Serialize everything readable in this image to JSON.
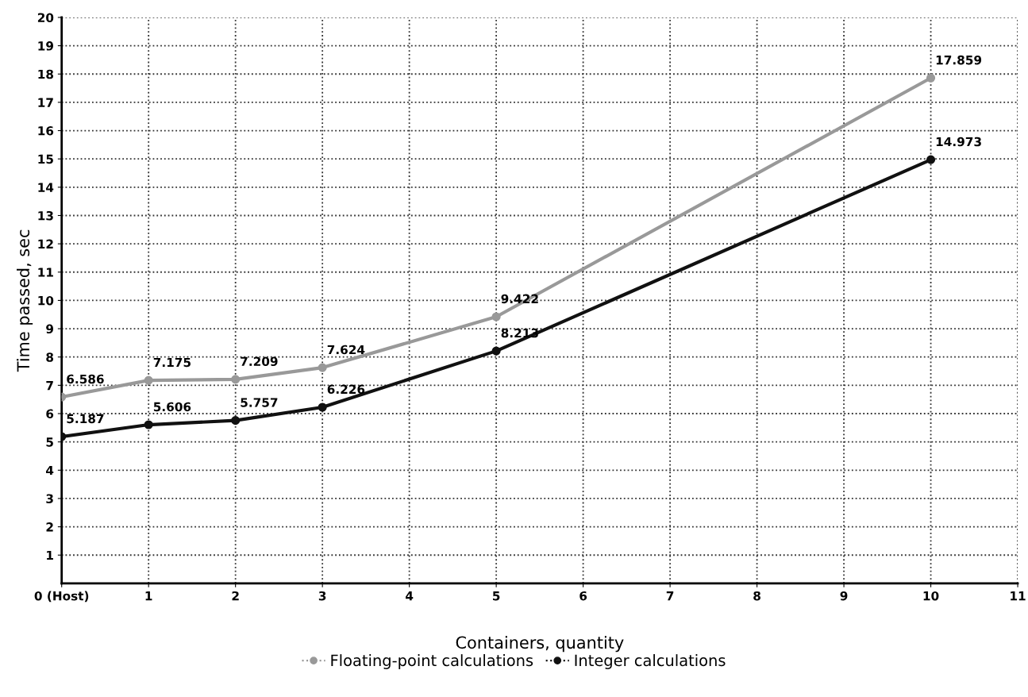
{
  "chart_data": {
    "type": "line",
    "xlabel": "Containers, quantity",
    "ylabel": "Time passed, sec",
    "x": [
      0,
      1,
      2,
      3,
      5,
      10
    ],
    "series": [
      {
        "name": "Floating-point calculations",
        "color": "#999999",
        "values": [
          6.586,
          7.175,
          7.209,
          7.624,
          9.422,
          17.859
        ]
      },
      {
        "name": "Integer calculations",
        "color": "#111111",
        "values": [
          5.187,
          5.606,
          5.757,
          6.226,
          8.213,
          14.973
        ]
      }
    ],
    "xlim": [
      0,
      11
    ],
    "xticks": [
      {
        "value": 0,
        "label": "0 (Host)"
      },
      1,
      2,
      3,
      4,
      5,
      6,
      7,
      8,
      9,
      10,
      11
    ],
    "ylim": [
      0,
      20
    ],
    "yticks": [
      1,
      2,
      3,
      4,
      5,
      6,
      7,
      8,
      9,
      10,
      11,
      12,
      13,
      14,
      15,
      16,
      17,
      18,
      19,
      20
    ],
    "grid": true,
    "legend": "bottom",
    "marker": "circle",
    "line_style": "solid",
    "data_labels": true
  }
}
